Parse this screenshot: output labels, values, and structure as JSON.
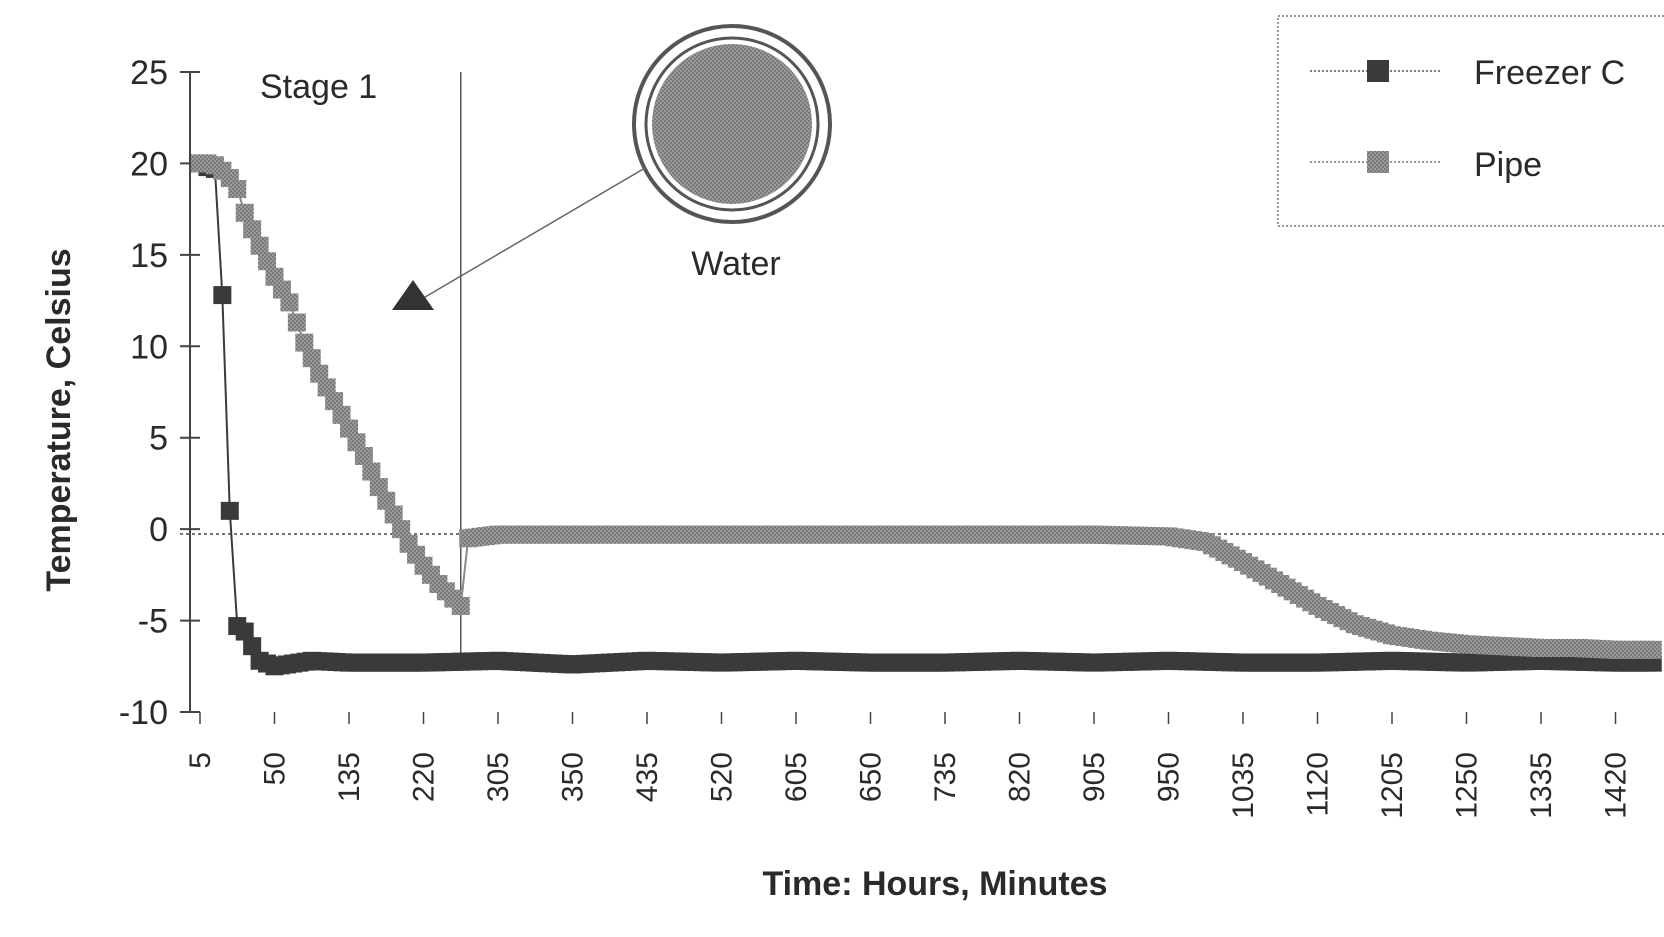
{
  "chart_data": {
    "type": "line",
    "xlabel": "Time: Hours, Minutes",
    "ylabel": "Temperature, Celsius",
    "ylim": [
      -10,
      25
    ],
    "y_ticks": [
      "25",
      "20",
      "15",
      "10",
      "5",
      "0",
      "-5",
      "-10"
    ],
    "x_tick_labels": [
      "5",
      "50",
      "135",
      "220",
      "305",
      "350",
      "435",
      "520",
      "605",
      "650",
      "735",
      "820",
      "905",
      "950",
      "1035",
      "1120",
      "1205",
      "1250",
      "1335",
      "1420"
    ],
    "legend": {
      "position": "top-right"
    },
    "annotations": {
      "stage_label": "Stage 1",
      "water_label": "Water",
      "stage_boundary_tick_index": 3.5
    },
    "series": [
      {
        "name": "Freezer C",
        "color": "#3a3a3a",
        "x_index": [
          0,
          0.1,
          0.2,
          0.3,
          0.4,
          0.5,
          0.6,
          0.8,
          1.0,
          1.5,
          2,
          3,
          4,
          5,
          6,
          7,
          8,
          9,
          10,
          11,
          12,
          13,
          14,
          15,
          16,
          17,
          18,
          19,
          19.5
        ],
        "values": [
          20,
          19.8,
          19.7,
          12.8,
          1,
          -5.3,
          -5.6,
          -7.2,
          -7.5,
          -7.2,
          -7.3,
          -7.3,
          -7.2,
          -7.4,
          -7.2,
          -7.3,
          -7.2,
          -7.3,
          -7.3,
          -7.2,
          -7.3,
          -7.2,
          -7.3,
          -7.3,
          -7.2,
          -7.3,
          -7.2,
          -7.3,
          -7.3
        ]
      },
      {
        "name": "Pipe",
        "color": "#8a8a8a",
        "x_index": [
          0,
          0.1,
          0.2,
          0.3,
          0.4,
          0.5,
          0.6,
          0.8,
          1.0,
          1.2,
          1.4,
          1.6,
          1.8,
          2.0,
          2.2,
          2.4,
          2.6,
          2.8,
          3.0,
          3.2,
          3.4,
          3.5,
          3.6,
          4,
          5,
          6,
          7,
          8,
          9,
          10,
          11,
          12,
          13,
          13.5,
          14,
          14.5,
          15,
          15.5,
          16,
          16.5,
          17,
          17.5,
          18,
          18.5,
          19,
          19.5
        ],
        "values": [
          20,
          20,
          19.9,
          19.6,
          19.2,
          18.6,
          17.3,
          15.5,
          13.8,
          12.4,
          10.2,
          8.5,
          7.0,
          5.5,
          4.0,
          2.3,
          0.8,
          -0.8,
          -2.0,
          -3.0,
          -3.8,
          -4.2,
          -0.5,
          -0.3,
          -0.3,
          -0.3,
          -0.3,
          -0.3,
          -0.3,
          -0.3,
          -0.3,
          -0.3,
          -0.4,
          -0.7,
          -1.8,
          -3.0,
          -4.2,
          -5.2,
          -5.8,
          -6.1,
          -6.3,
          -6.4,
          -6.5,
          -6.5,
          -6.6,
          -6.6
        ]
      }
    ]
  }
}
